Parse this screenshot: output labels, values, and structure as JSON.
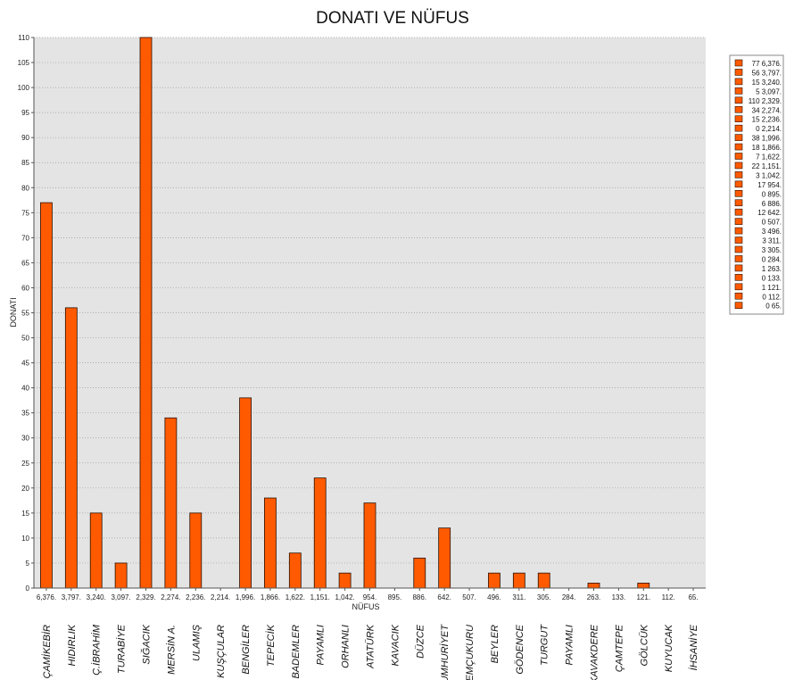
{
  "chart_data": {
    "type": "bar",
    "title": "DONATI VE NÜFUS",
    "xlabel": "NÜFUS",
    "ylabel": "DONATI",
    "ylim": [
      0,
      110
    ],
    "yticks": [
      0,
      5,
      10,
      15,
      20,
      25,
      30,
      35,
      40,
      45,
      50,
      55,
      60,
      65,
      70,
      75,
      80,
      85,
      90,
      95,
      100,
      105,
      110
    ],
    "grid": true,
    "legend_position": "right",
    "bar_color": "#ff5a00",
    "categories": [
      "6,376.",
      "3,797.",
      "3,240.",
      "3,097.",
      "2,329.",
      "2,274.",
      "2,236.",
      "2,214.",
      "1,996.",
      "1,866.",
      "1,622.",
      "1,151.",
      "1,042.",
      "954.",
      "895.",
      "886.",
      "642.",
      "507.",
      "496.",
      "311.",
      "305.",
      "284.",
      "263.",
      "133.",
      "121.",
      "112.",
      "65."
    ],
    "names": [
      "ÇAMİKEBİR",
      "HIDIRLIK",
      "Ç.İBRAHİM",
      "TURABİYE",
      "SIĞACIK",
      "MERSİN A.",
      "ULAMIŞ",
      "KUŞÇULAR",
      "BENGİLER",
      "TEPECİK",
      "BADEMLER",
      "PAYAMLI",
      "ORHANLI",
      "ATATÜRK",
      "KAVACIK",
      "DÜZCE",
      "CUMHURİYET",
      "EFEMÇUKURU",
      "BEYLER",
      "GÖDENCE",
      "TURGUT",
      "PAYAMLI",
      "KAVAKDERE",
      "ÇAMTEPE",
      "GÖLCÜK",
      "KUYUCAK",
      "İHSANİYE"
    ],
    "values": [
      77,
      56,
      15,
      5,
      110,
      34,
      15,
      0,
      38,
      18,
      7,
      22,
      3,
      17,
      0,
      6,
      12,
      0,
      3,
      3,
      3,
      0,
      1,
      0,
      1,
      0,
      0
    ],
    "legend": [
      "77 6,376.",
      "56 3,797.",
      "15 3,240.",
      "5 3,097.",
      "110 2,329.",
      "34 2,274.",
      "15 2,236.",
      "0 2,214.",
      "38 1,996.",
      "18 1,866.",
      "7 1,622.",
      "22 1,151.",
      "3 1,042.",
      "17 954.",
      "0 895.",
      "6 886.",
      "12 642.",
      "0 507.",
      "3 496.",
      "3 311.",
      "3 305.",
      "0 284.",
      "1 263.",
      "0 133.",
      "1 121.",
      "0 112.",
      "0 65."
    ]
  }
}
